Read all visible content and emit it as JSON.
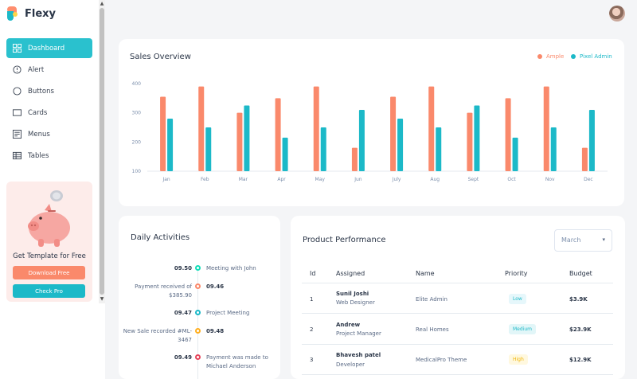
{
  "brand": {
    "name": "Flexy"
  },
  "sidebar": {
    "items": [
      {
        "label": "Dashboard",
        "icon": "dashboard-icon",
        "active": true
      },
      {
        "label": "Alert",
        "icon": "alert-icon"
      },
      {
        "label": "Buttons",
        "icon": "circle-icon"
      },
      {
        "label": "Cards",
        "icon": "card-icon"
      },
      {
        "label": "Menus",
        "icon": "menu-icon"
      },
      {
        "label": "Tables",
        "icon": "table-icon"
      }
    ],
    "promo": {
      "text": "Get Template for Free",
      "download_label": "Download Free",
      "check_label": "Check Pro"
    }
  },
  "colors": {
    "accent": "#2ac1ce",
    "ample": "#fa896b",
    "flexy": "#1cb9c8"
  },
  "sales": {
    "title": "Sales Overview",
    "legend": [
      "Ample",
      "Pixel Admin"
    ]
  },
  "chart_data": {
    "type": "bar",
    "title": "Sales Overview",
    "categories": [
      "Jan",
      "Feb",
      "Mar",
      "Apr",
      "May",
      "Jun",
      "July",
      "Aug",
      "Sept",
      "Oct",
      "Nov",
      "Dec"
    ],
    "series": [
      {
        "name": "Ample",
        "color": "#fa896b",
        "values": [
          355,
          390,
          300,
          350,
          390,
          180,
          355,
          390,
          300,
          350,
          390,
          180
        ]
      },
      {
        "name": "Pixel Admin",
        "color": "#1cb9c8",
        "values": [
          280,
          250,
          325,
          215,
          250,
          310,
          280,
          250,
          325,
          215,
          250,
          310
        ]
      }
    ],
    "ylim": [
      100,
      400
    ],
    "yticks": [
      "400",
      "300",
      "200",
      "100"
    ],
    "grid": false,
    "legend": "top-right"
  },
  "activity": {
    "title": "Daily Activities",
    "items": [
      {
        "time": "09.50",
        "text": "Meeting with John",
        "color": "#13deb9",
        "time_bold": true
      },
      {
        "time": "Payment received of $385.90",
        "text": "09.46",
        "color": "#fa896b",
        "time_bold": false
      },
      {
        "time": "09.47",
        "text": "Project Meeting",
        "color": "#1cb9c8",
        "time_bold": true
      },
      {
        "time": "New Sale recorded #ML-3467",
        "text": "09.48",
        "color": "#ffae1f",
        "time_bold": false
      },
      {
        "time": "09.49",
        "text": "Payment was made to Michael Anderson",
        "color": "#e6455b",
        "time_bold": true
      }
    ]
  },
  "product": {
    "title": "Product Performance",
    "month": "March",
    "headers": [
      "Id",
      "Assigned",
      "Name",
      "Priority",
      "Budget"
    ],
    "rows": [
      {
        "id": "1",
        "assigned": "Sunil Joshi",
        "role": "Web Designer",
        "name": "Elite Admin",
        "priority": "Low",
        "budget": "$3.9K"
      },
      {
        "id": "2",
        "assigned": "Andrew",
        "role": "Project Manager",
        "name": "Real Homes",
        "priority": "Medium",
        "budget": "$23.9K"
      },
      {
        "id": "3",
        "assigned": "Bhavesh patel",
        "role": "Developer",
        "name": "MedicalPro Theme",
        "priority": "High",
        "budget": "$12.9K"
      }
    ]
  }
}
